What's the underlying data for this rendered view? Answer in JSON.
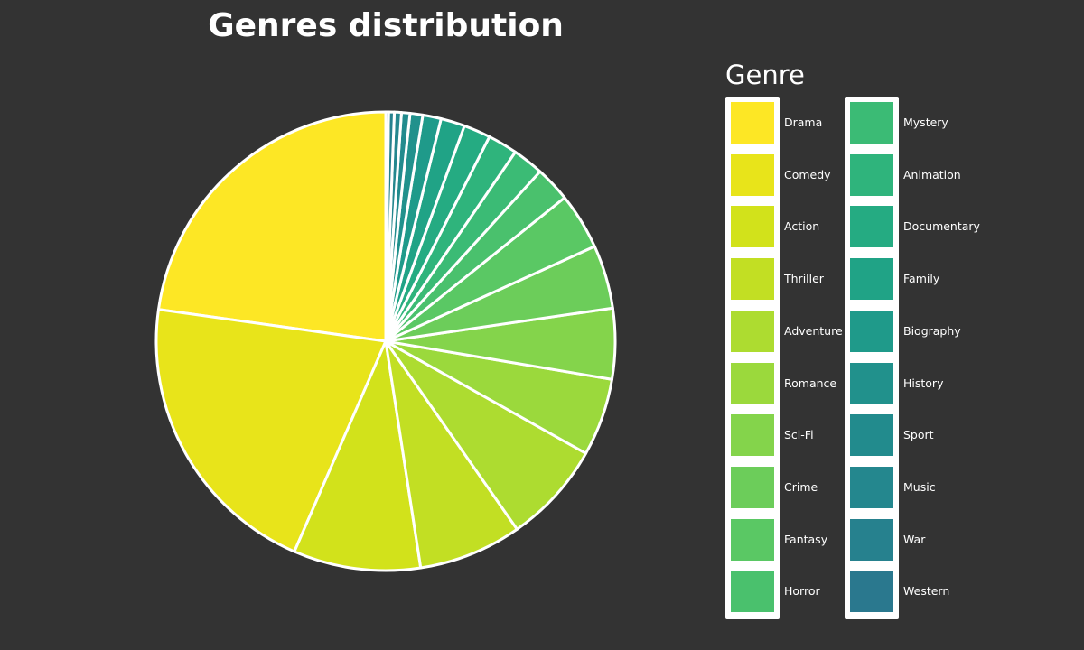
{
  "chart_data": {
    "type": "pie",
    "title": "Genres distribution",
    "legend_title": "Genre",
    "legend_position": "right",
    "categories": [
      "Drama",
      "Comedy",
      "Action",
      "Thriller",
      "Adventure",
      "Romance",
      "Sci-Fi",
      "Crime",
      "Fantasy",
      "Horror",
      "Mystery",
      "Animation",
      "Documentary",
      "Family",
      "Biography",
      "History",
      "Sport",
      "Music",
      "War",
      "Western"
    ],
    "values": [
      22.9,
      20.8,
      9.0,
      7.3,
      7.2,
      5.5,
      5.0,
      4.5,
      4.0,
      2.5,
      2.2,
      2.1,
      1.9,
      1.7,
      1.3,
      0.9,
      0.6,
      0.5,
      0.4,
      0.2
    ],
    "colors": [
      "#fde725",
      "#e8e41a",
      "#d2e21b",
      "#c2df23",
      "#addc30",
      "#9bd93c",
      "#84d44b",
      "#6ccd5a",
      "#5ac864",
      "#4ac16d",
      "#3bbb75",
      "#2fb47c",
      "#25ab82",
      "#20a386",
      "#1f9a8a",
      "#21918c",
      "#228b8d",
      "#24878e",
      "#26818e",
      "#2a788e"
    ]
  }
}
